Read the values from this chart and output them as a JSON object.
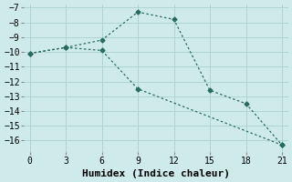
{
  "line1_x": [
    0,
    3,
    6,
    9,
    12,
    15,
    18,
    21
  ],
  "line1_y": [
    -10.1,
    -9.7,
    -9.2,
    -7.3,
    -7.8,
    -12.6,
    -13.5,
    -16.3
  ],
  "line2_x": [
    0,
    3,
    6,
    9,
    21
  ],
  "line2_y": [
    -10.1,
    -9.7,
    -9.9,
    -12.5,
    -16.3
  ],
  "line_color": "#2a6b60",
  "marker": "D",
  "markersize": 2.5,
  "xlabel": "Humidex (Indice chaleur)",
  "xlim": [
    -0.5,
    21.5
  ],
  "ylim": [
    -16.8,
    -6.8
  ],
  "yticks": [
    -7,
    -8,
    -9,
    -10,
    -11,
    -12,
    -13,
    -14,
    -15,
    -16
  ],
  "xticks": [
    0,
    3,
    6,
    9,
    12,
    15,
    18,
    21
  ],
  "bg_color": "#ceeaea",
  "grid_color": "#aed4d4",
  "font_family": "monospace",
  "tick_fontsize": 7,
  "xlabel_fontsize": 8
}
